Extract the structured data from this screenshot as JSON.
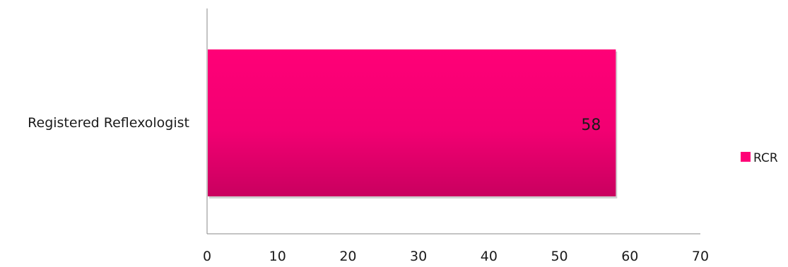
{
  "chart_data": {
    "type": "bar",
    "orientation": "horizontal",
    "categories": [
      "Registered Reflexologist"
    ],
    "series": [
      {
        "name": "RCR",
        "values": [
          58
        ],
        "color": "#ff0077"
      }
    ],
    "xlim": [
      0,
      70
    ],
    "x_ticks": [
      "0",
      "10",
      "20",
      "30",
      "40",
      "50",
      "60",
      "70"
    ],
    "data_labels": [
      "58"
    ],
    "legend": {
      "position": "right"
    },
    "grid": false
  }
}
